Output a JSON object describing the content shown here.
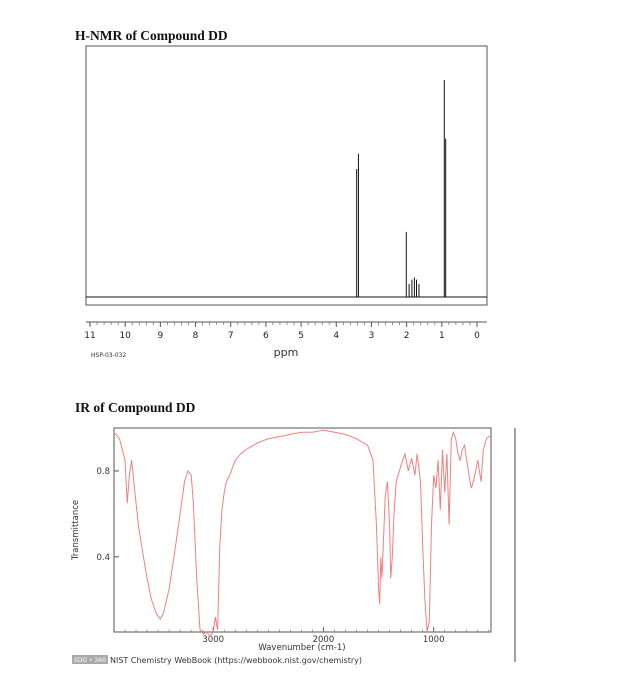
{
  "nmr_title": "H-NMR of Compound DD",
  "ir_title": "IR of Compound DD",
  "chart_data": [
    {
      "type": "line",
      "xlabel": "ppm",
      "xlim": [
        11,
        0
      ],
      "x_ticks": [
        11,
        10,
        9,
        8,
        7,
        6,
        5,
        4,
        3,
        2,
        1,
        0
      ],
      "code_label": "HSP-03-032",
      "peaks": [
        {
          "ppm": 3.42,
          "height": 0.59
        },
        {
          "ppm": 3.37,
          "height": 0.66
        },
        {
          "ppm": 2.01,
          "height": 0.3
        },
        {
          "ppm": 1.93,
          "height": 0.06
        },
        {
          "ppm": 1.85,
          "height": 0.08
        },
        {
          "ppm": 1.78,
          "height": 0.09
        },
        {
          "ppm": 1.72,
          "height": 0.08
        },
        {
          "ppm": 1.65,
          "height": 0.06
        },
        {
          "ppm": 0.93,
          "height": 1.0
        },
        {
          "ppm": 0.89,
          "height": 0.73
        }
      ]
    },
    {
      "type": "line",
      "xlabel": "Wavenumber (cm-1)",
      "ylabel": "Transmittance",
      "xlim": [
        3900,
        480
      ],
      "ylim": [
        0.05,
        1.0
      ],
      "x_ticks": [
        3000,
        2000,
        1000
      ],
      "y_ticks": [
        0.8,
        0.4
      ],
      "footer": "NIST Chemistry WebBook (https://webbook.nist.gov/chemistry)",
      "badge": "SDG • 360",
      "colors": {
        "trace": "#f08080",
        "badge": "#aaaaaa"
      },
      "points": [
        [
          3900,
          0.98
        ],
        [
          3850,
          0.95
        ],
        [
          3800,
          0.85
        ],
        [
          3780,
          0.65
        ],
        [
          3760,
          0.78
        ],
        [
          3740,
          0.85
        ],
        [
          3720,
          0.75
        ],
        [
          3680,
          0.55
        ],
        [
          3640,
          0.42
        ],
        [
          3600,
          0.3
        ],
        [
          3560,
          0.2
        ],
        [
          3520,
          0.14
        ],
        [
          3480,
          0.11
        ],
        [
          3450,
          0.14
        ],
        [
          3400,
          0.25
        ],
        [
          3350,
          0.42
        ],
        [
          3300,
          0.6
        ],
        [
          3260,
          0.75
        ],
        [
          3230,
          0.8
        ],
        [
          3200,
          0.78
        ],
        [
          3180,
          0.65
        ],
        [
          3150,
          0.3
        ],
        [
          3120,
          0.06
        ],
        [
          3090,
          0.04
        ],
        [
          3060,
          0.05
        ],
        [
          3030,
          0.03
        ],
        [
          3000,
          0.05
        ],
        [
          2980,
          0.12
        ],
        [
          2960,
          0.06
        ],
        [
          2940,
          0.45
        ],
        [
          2920,
          0.62
        ],
        [
          2900,
          0.7
        ],
        [
          2880,
          0.75
        ],
        [
          2850,
          0.78
        ],
        [
          2800,
          0.85
        ],
        [
          2750,
          0.88
        ],
        [
          2700,
          0.9
        ],
        [
          2600,
          0.93
        ],
        [
          2500,
          0.95
        ],
        [
          2400,
          0.96
        ],
        [
          2300,
          0.97
        ],
        [
          2200,
          0.98
        ],
        [
          2100,
          0.98
        ],
        [
          2000,
          0.99
        ],
        [
          1900,
          0.98
        ],
        [
          1800,
          0.97
        ],
        [
          1700,
          0.95
        ],
        [
          1600,
          0.92
        ],
        [
          1550,
          0.85
        ],
        [
          1520,
          0.55
        ],
        [
          1500,
          0.25
        ],
        [
          1490,
          0.18
        ],
        [
          1480,
          0.4
        ],
        [
          1470,
          0.3
        ],
        [
          1460,
          0.42
        ],
        [
          1440,
          0.68
        ],
        [
          1420,
          0.75
        ],
        [
          1400,
          0.55
        ],
        [
          1390,
          0.3
        ],
        [
          1375,
          0.4
        ],
        [
          1360,
          0.6
        ],
        [
          1340,
          0.75
        ],
        [
          1300,
          0.82
        ],
        [
          1260,
          0.88
        ],
        [
          1230,
          0.8
        ],
        [
          1200,
          0.86
        ],
        [
          1170,
          0.78
        ],
        [
          1150,
          0.88
        ],
        [
          1120,
          0.75
        ],
        [
          1100,
          0.45
        ],
        [
          1080,
          0.2
        ],
        [
          1060,
          0.05
        ],
        [
          1040,
          0.1
        ],
        [
          1020,
          0.55
        ],
        [
          1000,
          0.78
        ],
        [
          980,
          0.72
        ],
        [
          960,
          0.85
        ],
        [
          940,
          0.62
        ],
        [
          920,
          0.9
        ],
        [
          900,
          0.7
        ],
        [
          880,
          0.88
        ],
        [
          860,
          0.55
        ],
        [
          840,
          0.95
        ],
        [
          820,
          0.98
        ],
        [
          800,
          0.95
        ],
        [
          780,
          0.88
        ],
        [
          760,
          0.85
        ],
        [
          740,
          0.9
        ],
        [
          720,
          0.92
        ],
        [
          700,
          0.85
        ],
        [
          680,
          0.78
        ],
        [
          660,
          0.72
        ],
        [
          640,
          0.75
        ],
        [
          620,
          0.8
        ],
        [
          600,
          0.85
        ],
        [
          570,
          0.75
        ],
        [
          550,
          0.9
        ],
        [
          520,
          0.95
        ],
        [
          500,
          0.96
        ],
        [
          480,
          0.96
        ]
      ]
    }
  ]
}
